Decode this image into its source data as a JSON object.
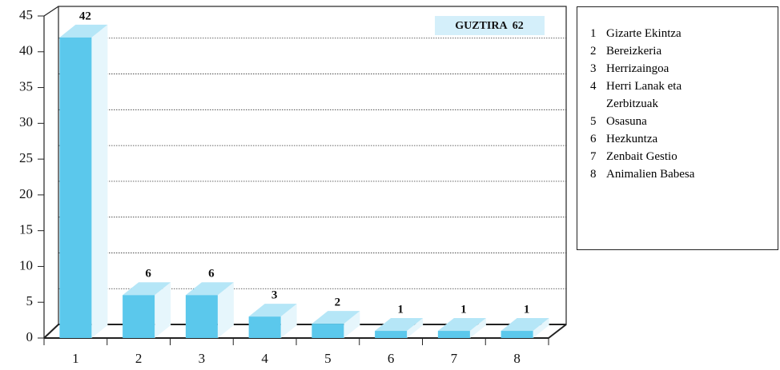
{
  "chart_data": {
    "type": "bar3d",
    "categories": [
      "1",
      "2",
      "3",
      "4",
      "5",
      "6",
      "7",
      "8"
    ],
    "values": [
      42,
      6,
      6,
      3,
      2,
      1,
      1,
      1
    ],
    "color": "#5bc8ec",
    "ylim": [
      0,
      45
    ],
    "yticks": [
      0,
      5,
      10,
      15,
      20,
      25,
      30,
      35,
      40,
      45
    ],
    "grid": true,
    "annotation": "GUZTIRA  62",
    "legend_labels": [
      "Gizarte Ekintza",
      "Bereizkeria",
      "Herrizaingoa",
      "Herri Lanak eta Zerbitzuak",
      "Osasuna",
      "Hezkuntza",
      "Zenbait Gestio",
      "Animalien Babesa"
    ]
  }
}
